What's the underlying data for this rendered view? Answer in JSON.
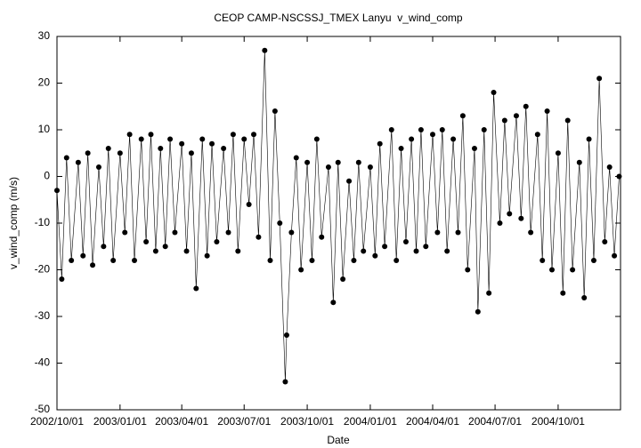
{
  "chart_data": {
    "type": "line",
    "title": "CEOP CAMP-NSCSSJ_TMEX Lanyu  v_wind_comp",
    "xlabel": "Date",
    "ylabel": "v_wind_comp (m/s)",
    "x": [
      "2002/10/01",
      "2002/10/08",
      "2002/10/15",
      "2002/10/22",
      "2002/11/01",
      "2002/11/08",
      "2002/11/15",
      "2002/11/22",
      "2002/12/01",
      "2002/12/08",
      "2002/12/15",
      "2002/12/22",
      "2003/01/01",
      "2003/01/08",
      "2003/01/15",
      "2003/01/22",
      "2003/02/01",
      "2003/02/08",
      "2003/02/15",
      "2003/02/22",
      "2003/03/01",
      "2003/03/08",
      "2003/03/15",
      "2003/03/22",
      "2003/04/01",
      "2003/04/08",
      "2003/04/15",
      "2003/04/22",
      "2003/05/01",
      "2003/05/08",
      "2003/05/15",
      "2003/05/22",
      "2003/06/01",
      "2003/06/08",
      "2003/06/15",
      "2003/06/22",
      "2003/07/01",
      "2003/07/08",
      "2003/07/15",
      "2003/07/22",
      "2003/07/31",
      "2003/08/08",
      "2003/08/15",
      "2003/08/22",
      "2003/08/30",
      "2003/09/01",
      "2003/09/08",
      "2003/09/15",
      "2003/09/22",
      "2003/10/01",
      "2003/10/08",
      "2003/10/15",
      "2003/10/22",
      "2003/11/01",
      "2003/11/08",
      "2003/11/15",
      "2003/11/22",
      "2003/12/01",
      "2003/12/08",
      "2003/12/15",
      "2003/12/22",
      "2004/01/01",
      "2004/01/08",
      "2004/01/15",
      "2004/01/22",
      "2004/02/01",
      "2004/02/08",
      "2004/02/15",
      "2004/02/22",
      "2004/03/01",
      "2004/03/08",
      "2004/03/15",
      "2004/03/22",
      "2004/04/01",
      "2004/04/08",
      "2004/04/15",
      "2004/04/22",
      "2004/05/01",
      "2004/05/08",
      "2004/05/15",
      "2004/05/22",
      "2004/06/01",
      "2004/06/06",
      "2004/06/15",
      "2004/06/22",
      "2004/06/29",
      "2004/07/08",
      "2004/07/15",
      "2004/07/22",
      "2004/08/01",
      "2004/08/08",
      "2004/08/15",
      "2004/08/22",
      "2004/09/01",
      "2004/09/08",
      "2004/09/15",
      "2004/09/22",
      "2004/10/01",
      "2004/10/08",
      "2004/10/15",
      "2004/10/22",
      "2004/11/01",
      "2004/11/08",
      "2004/11/15",
      "2004/11/22",
      "2004/11/30",
      "2004/12/08",
      "2004/12/15",
      "2004/12/22",
      "2004/12/29"
    ],
    "series": [
      {
        "name": "v_wind_comp",
        "color": "#000000",
        "values": [
          -3,
          -22,
          4,
          -18,
          3,
          -17,
          5,
          -19,
          2,
          -15,
          6,
          -18,
          5,
          -12,
          9,
          -18,
          8,
          -14,
          9,
          -16,
          6,
          -15,
          8,
          -12,
          7,
          -16,
          5,
          -24,
          8,
          -17,
          7,
          -14,
          6,
          -12,
          9,
          -16,
          8,
          -6,
          9,
          -13,
          27,
          -18,
          14,
          -10,
          -44,
          -34,
          -12,
          4,
          -20,
          3,
          -18,
          8,
          -13,
          2,
          -27,
          3,
          -22,
          -1,
          -18,
          3,
          -16,
          2,
          -17,
          7,
          -15,
          10,
          -18,
          6,
          -14,
          8,
          -16,
          10,
          -15,
          9,
          -12,
          10,
          -16,
          8,
          -12,
          13,
          -20,
          6,
          -29,
          10,
          -25,
          18,
          -10,
          12,
          -8,
          13,
          -9,
          15,
          -12,
          9,
          -18,
          14,
          -20,
          5,
          -25,
          12,
          -20,
          3,
          -26,
          8,
          -18,
          21,
          -14,
          2,
          -17,
          0
        ]
      }
    ],
    "xlim": [
      "2002/10/01",
      "2004/12/31"
    ],
    "xticks": [
      "2002/10/01",
      "2003/01/01",
      "2003/04/01",
      "2003/07/01",
      "2003/10/01",
      "2004/01/01",
      "2004/04/01",
      "2004/07/01",
      "2004/10/01"
    ],
    "ylim": [
      -50,
      30
    ],
    "yticks": [
      -50,
      -40,
      -30,
      -20,
      -10,
      0,
      10,
      20,
      30
    ]
  }
}
